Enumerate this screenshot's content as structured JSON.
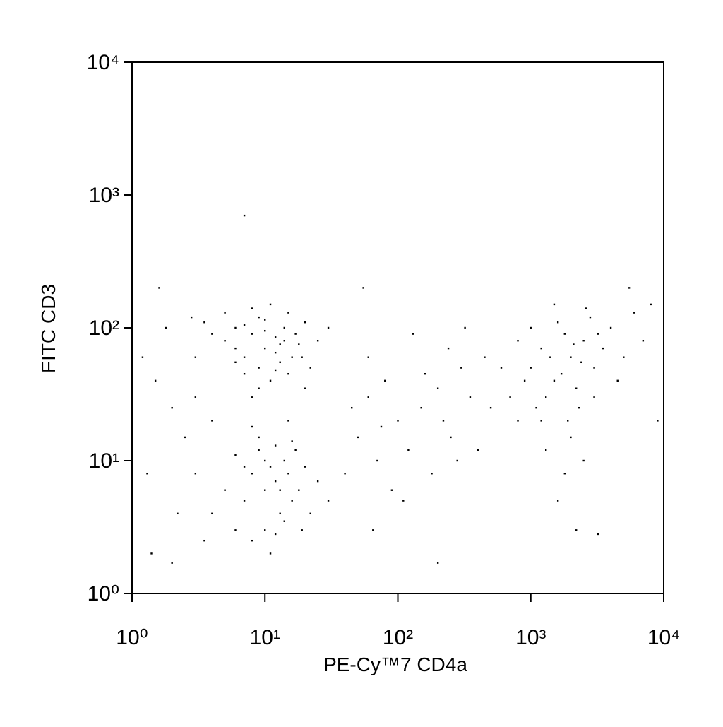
{
  "chart_data": {
    "type": "scatter",
    "x_label": "PE-Cy™7 CD4a",
    "y_label": "FITC CD3",
    "log_x": true,
    "log_y": true,
    "xlim": [
      1,
      10000
    ],
    "ylim": [
      1,
      10000
    ],
    "xticks": [
      {
        "value": 1,
        "label": "10⁰"
      },
      {
        "value": 10,
        "label": "10¹"
      },
      {
        "value": 100,
        "label": "10²"
      },
      {
        "value": 1000,
        "label": "10³"
      },
      {
        "value": 10000,
        "label": "10⁴"
      }
    ],
    "yticks": [
      {
        "value": 1,
        "label": "10⁰"
      },
      {
        "value": 10,
        "label": "10¹"
      },
      {
        "value": 100,
        "label": "10²"
      },
      {
        "value": 1000,
        "label": "10³"
      },
      {
        "value": 10000,
        "label": "10⁴"
      }
    ],
    "color": "#000000",
    "x": [
      5,
      6,
      7,
      8,
      9,
      10,
      12,
      14,
      16,
      18,
      20,
      7,
      9,
      11,
      13,
      15,
      6,
      8,
      10,
      12,
      4,
      3.5,
      25,
      22,
      17,
      11,
      9,
      6,
      13,
      15,
      19,
      30,
      5,
      8,
      10,
      14,
      7,
      12,
      20,
      3,
      8,
      10,
      12,
      14,
      16,
      9,
      11,
      13,
      15,
      18,
      7,
      6,
      10,
      12,
      20,
      8,
      11,
      14,
      17,
      9,
      5,
      4,
      25,
      22,
      13,
      10,
      7,
      16,
      6,
      19,
      12,
      30,
      3,
      8,
      15,
      1.5,
      2,
      1.3,
      2.5,
      1.8,
      2.2,
      1.4,
      3,
      2.8,
      1.6,
      4,
      3.5,
      2,
      7,
      1.2,
      50,
      60,
      70,
      80,
      100,
      120,
      150,
      200,
      250,
      300,
      40,
      90,
      60,
      180,
      220,
      350,
      400,
      130,
      45,
      75,
      160,
      280,
      500,
      450,
      110,
      55,
      200,
      65,
      320,
      240,
      1000,
      1200,
      1500,
      1800,
      2000,
      2500,
      3000,
      1300,
      1600,
      2200,
      2800,
      3500,
      4000,
      1100,
      1400,
      1700,
      2100,
      2400,
      2600,
      900,
      800,
      700,
      1900,
      2300,
      3200,
      5000,
      6000,
      7000,
      1500,
      1000,
      1200,
      2000,
      3000,
      800,
      600,
      1800,
      1300,
      2500,
      4500,
      8000,
      5500,
      1600,
      2200,
      3200,
      9000
    ],
    "values": [
      80,
      100,
      60,
      90,
      120,
      70,
      85,
      100,
      60,
      75,
      110,
      45,
      50,
      40,
      55,
      130,
      70,
      140,
      95,
      65,
      90,
      110,
      80,
      50,
      90,
      150,
      35,
      55,
      75,
      45,
      60,
      100,
      130,
      30,
      115,
      80,
      105,
      48,
      35,
      60,
      8,
      6,
      7,
      10,
      5,
      12,
      9,
      4,
      8,
      6,
      5,
      3,
      3,
      13,
      9,
      2.5,
      2,
      3.5,
      12,
      15,
      6,
      4,
      7,
      4,
      6,
      10,
      9,
      14,
      11,
      3,
      2.8,
      5,
      8,
      18,
      20,
      40,
      25,
      8,
      15,
      100,
      4,
      2,
      30,
      120,
      200,
      20,
      2.5,
      1.7,
      700,
      60,
      15,
      30,
      10,
      40,
      20,
      12,
      25,
      35,
      15,
      50,
      8,
      6,
      60,
      8,
      20,
      30,
      12,
      90,
      25,
      18,
      45,
      10,
      25,
      60,
      5,
      200,
      1.7,
      3,
      100,
      70,
      50,
      70,
      40,
      90,
      60,
      80,
      50,
      30,
      110,
      35,
      120,
      70,
      100,
      25,
      60,
      45,
      75,
      55,
      140,
      40,
      80,
      30,
      20,
      25,
      90,
      60,
      130,
      80,
      150,
      100,
      20,
      15,
      30,
      20,
      50,
      8,
      12,
      10,
      40,
      150,
      200,
      5,
      3,
      2.8,
      20
    ]
  }
}
